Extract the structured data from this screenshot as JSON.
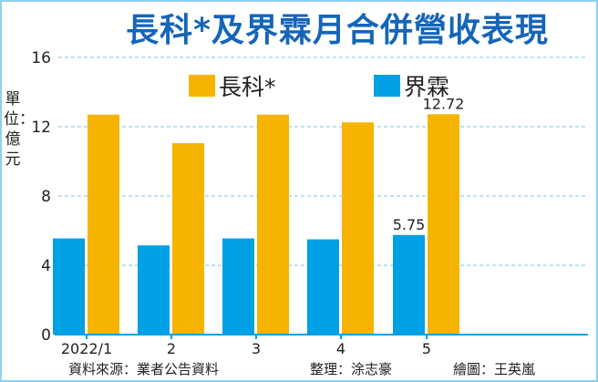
{
  "chart_data": {
    "type": "bar",
    "title": "長科*及界霖月合併營收表現",
    "ylabel": "單位：億元",
    "categories": [
      "2022/1",
      "2",
      "3",
      "4",
      "5"
    ],
    "series": [
      {
        "name": "界霖",
        "color": "#00a0e4",
        "values": [
          5.55,
          5.15,
          5.55,
          5.5,
          5.75
        ]
      },
      {
        "name": "長科*",
        "color": "#f6b400",
        "values": [
          12.7,
          11.05,
          12.7,
          12.25,
          12.72
        ]
      }
    ],
    "data_labels": [
      {
        "series": "界霖",
        "category": "5",
        "text": "5.75"
      },
      {
        "series": "長科*",
        "category": "5",
        "text": "12.72"
      }
    ],
    "ylim": [
      0,
      16
    ],
    "yticks": [
      "0",
      "4",
      "8",
      "12",
      "16"
    ],
    "grid": true,
    "legend": "top"
  },
  "footer": {
    "source": "資料來源：業者公告資料",
    "editor": "整理：涂志豪",
    "illustrator": "繪圖：王英嵐"
  }
}
